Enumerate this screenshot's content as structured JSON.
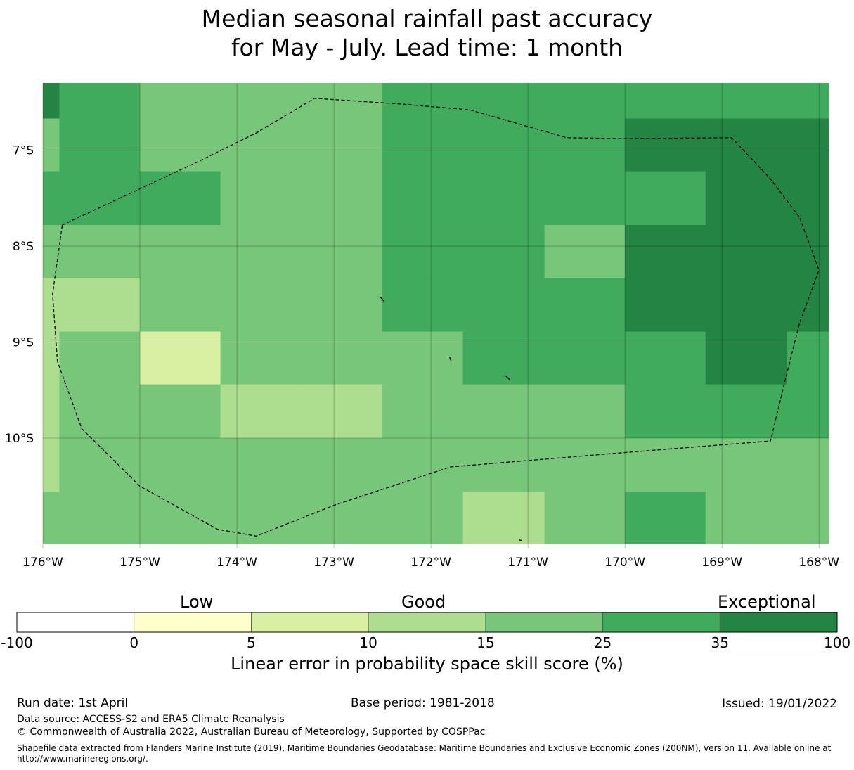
{
  "title": {
    "line1": "Median seasonal rainfall past accuracy",
    "line2": "for May - July. Lead time: 1 month"
  },
  "map": {
    "lon_range": [
      -176,
      -167.9
    ],
    "lat_range": [
      -11.15,
      -6.3
    ],
    "x_ticks": [
      {
        "lon": -176,
        "label": "176°W"
      },
      {
        "lon": -175,
        "label": "175°W"
      },
      {
        "lon": -174,
        "label": "174°W"
      },
      {
        "lon": -173,
        "label": "173°W"
      },
      {
        "lon": -172,
        "label": "172°W"
      },
      {
        "lon": -171,
        "label": "171°W"
      },
      {
        "lon": -170,
        "label": "170°W"
      },
      {
        "lon": -169,
        "label": "169°W"
      },
      {
        "lon": -168,
        "label": "168°W"
      }
    ],
    "y_ticks": [
      {
        "lat": -7,
        "label": "7°S"
      },
      {
        "lat": -8,
        "label": "8°S"
      },
      {
        "lat": -9,
        "label": "9°S"
      },
      {
        "lat": -10,
        "label": "10°S"
      }
    ],
    "grid_x_edges": [
      -176,
      -175.83,
      -175,
      -174.17,
      -173.33,
      -172.5,
      -171.67,
      -170.83,
      -170,
      -169.17,
      -168.33,
      -167.9
    ],
    "grid_y_edges": [
      -6.3,
      -6.67,
      -7.22,
      -7.78,
      -8.33,
      -8.89,
      -9.44,
      -10,
      -10.56,
      -11.1
    ],
    "cells": [
      [
        6,
        5,
        4,
        4,
        4,
        5,
        5,
        5,
        5,
        5,
        5
      ],
      [
        4,
        5,
        4,
        4,
        4,
        5,
        5,
        5,
        6,
        6,
        6
      ],
      [
        5,
        5,
        5,
        4,
        4,
        5,
        5,
        5,
        5,
        6,
        6
      ],
      [
        4,
        4,
        4,
        4,
        4,
        5,
        5,
        4,
        6,
        6,
        6
      ],
      [
        3,
        3,
        4,
        4,
        4,
        5,
        5,
        5,
        6,
        6,
        6
      ],
      [
        3,
        4,
        2,
        4,
        4,
        4,
        5,
        5,
        5,
        6,
        5
      ],
      [
        3,
        4,
        4,
        3,
        3,
        4,
        4,
        4,
        5,
        5,
        5
      ],
      [
        3,
        4,
        4,
        4,
        4,
        4,
        4,
        4,
        4,
        4,
        4
      ],
      [
        4,
        4,
        4,
        4,
        4,
        4,
        3,
        4,
        5,
        4,
        4
      ]
    ],
    "eez_boundary": [
      [
        -175.8,
        -7.78
      ],
      [
        -175.1,
        -7.45
      ],
      [
        -174.4,
        -7.12
      ],
      [
        -173.8,
        -6.82
      ],
      [
        -173.2,
        -6.46
      ],
      [
        -172.3,
        -6.52
      ],
      [
        -171.6,
        -6.58
      ],
      [
        -170.6,
        -6.87
      ],
      [
        -170.0,
        -6.88
      ],
      [
        -168.9,
        -6.87
      ],
      [
        -168.5,
        -7.3
      ],
      [
        -168.2,
        -7.7
      ],
      [
        -168.0,
        -8.25
      ],
      [
        -168.2,
        -8.8
      ],
      [
        -168.35,
        -9.4
      ],
      [
        -168.5,
        -10.03
      ],
      [
        -170.0,
        -10.15
      ],
      [
        -171.8,
        -10.3
      ],
      [
        -173.0,
        -10.7
      ],
      [
        -173.8,
        -11.02
      ],
      [
        -174.2,
        -10.95
      ],
      [
        -175.0,
        -10.5
      ],
      [
        -175.6,
        -9.9
      ],
      [
        -175.85,
        -9.2
      ],
      [
        -175.9,
        -8.5
      ],
      [
        -175.8,
        -7.78
      ]
    ],
    "islands": [
      [
        [
          -172.52,
          -8.53
        ],
        [
          -172.48,
          -8.58
        ]
      ],
      [
        [
          -171.81,
          -9.15
        ],
        [
          -171.79,
          -9.2
        ]
      ],
      [
        [
          -171.23,
          -9.35
        ],
        [
          -171.19,
          -9.39
        ]
      ],
      [
        [
          -171.09,
          -11.06
        ],
        [
          -171.06,
          -11.07
        ]
      ]
    ]
  },
  "colorbar": {
    "categories": [
      "Low",
      "Good",
      "Exceptional"
    ],
    "colors": [
      "#ffffff",
      "#ffffcc",
      "#d9f0a3",
      "#addd8e",
      "#78c679",
      "#41ab5d",
      "#238443"
    ],
    "ticks": [
      "-100",
      "0",
      "5",
      "10",
      "15",
      "25",
      "35",
      "100"
    ],
    "title": "Linear error in probability space skill score (%)"
  },
  "footer": {
    "run_date": "Run date: 1st April",
    "base_period": "Base period: 1981-2018",
    "issued": "Issued: 19/01/2022",
    "data_source": "Data source: ACCESS-S2 and ERA5 Climate Reanalysis",
    "copyright": "© Commonwealth of Australia 2022, Australian Bureau of Meteorology, Supported by COSPPac",
    "shapefile_note": "Shapefile data extracted from Flanders Marine Institute (2019), Maritime Boundaries Geodatabase: Maritime Boundaries and Exclusive Economic Zones (200NM), version 11. Available online at http://www.marineregions.org/."
  }
}
